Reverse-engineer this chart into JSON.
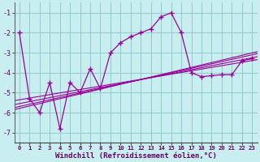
{
  "title": "",
  "xlabel": "Windchill (Refroidissement éolien,°C)",
  "bg_color": "#c8eef0",
  "grid_color": "#99cccc",
  "line_color": "#990099",
  "xlim": [
    -0.5,
    23.5
  ],
  "ylim": [
    -7.5,
    -0.5
  ],
  "xticks": [
    0,
    1,
    2,
    3,
    4,
    5,
    6,
    7,
    8,
    9,
    10,
    11,
    12,
    13,
    14,
    15,
    16,
    17,
    18,
    19,
    20,
    21,
    22,
    23
  ],
  "yticks": [
    -7,
    -6,
    -5,
    -4,
    -3,
    -2,
    -1
  ],
  "main_x": [
    0,
    1,
    2,
    3,
    4,
    5,
    6,
    7,
    8,
    9,
    10,
    11,
    12,
    13,
    14,
    15,
    16,
    17,
    18,
    19,
    20,
    21,
    22,
    23
  ],
  "main_y": [
    -2.0,
    -5.3,
    -6.0,
    -4.5,
    -6.8,
    -4.5,
    -5.0,
    -3.8,
    -4.8,
    -3.0,
    -2.5,
    -2.2,
    -2.0,
    -1.8,
    -1.2,
    -1.0,
    -2.0,
    -4.0,
    -4.2,
    -4.15,
    -4.1,
    -4.1,
    -3.4,
    -3.3
  ],
  "reg_lines": [
    [
      [
        -0.5,
        23.5
      ],
      [
        -5.4,
        -3.35
      ]
    ],
    [
      [
        -0.5,
        23.5
      ],
      [
        -5.6,
        -3.2
      ]
    ],
    [
      [
        -0.5,
        23.5
      ],
      [
        -5.75,
        -3.05
      ]
    ],
    [
      [
        -0.5,
        23.5
      ],
      [
        -5.85,
        -2.95
      ]
    ]
  ]
}
